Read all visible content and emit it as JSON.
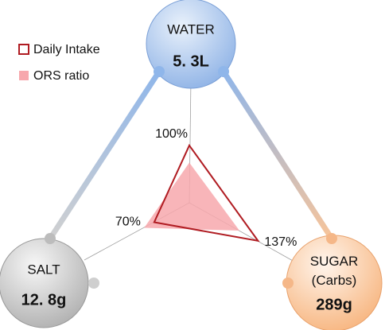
{
  "chart_data": {
    "type": "radar",
    "categories": [
      "WATER",
      "SUGAR (Carbs)",
      "SALT"
    ],
    "category_amounts": [
      "5. 3L",
      "289g",
      "12. 8g"
    ],
    "rlim": [
      0,
      215
    ],
    "series": [
      {
        "name": "ORS ratio",
        "color": "#f7a8ad",
        "fill": true,
        "values": [
          70,
          100,
          90
        ]
      },
      {
        "name": "Daily Intake",
        "color": "#b01c22",
        "fill": false,
        "values": [
          100,
          137,
          70
        ],
        "value_labels": [
          "100%",
          "137%",
          "70%"
        ]
      }
    ]
  }
}
